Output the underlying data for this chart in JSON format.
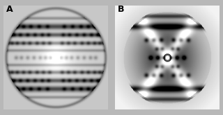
{
  "background_color": "#b8b8b8",
  "panel_A_label": "A",
  "panel_B_label": "B",
  "label_color": "black",
  "label_fontsize": 9,
  "label_fontweight": "bold",
  "fig_width": 3.2,
  "fig_height": 1.66,
  "dpi": 100
}
